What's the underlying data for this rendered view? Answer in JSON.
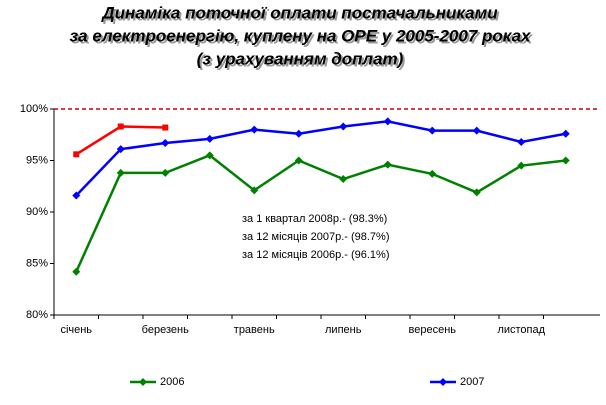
{
  "chart_data": {
    "type": "line",
    "title": [
      "Динаміка поточної оплати постачальниками",
      "за електроенергію, куплену на ОРЕ у 2005-2007 роках",
      "(з урахуванням доплат)"
    ],
    "categories": [
      "січень",
      null,
      "березень",
      null,
      "травень",
      null,
      "липень",
      null,
      "вересень",
      null,
      "листопад",
      null
    ],
    "series": [
      {
        "name": "2006",
        "color": "#008000",
        "marker": "diamond",
        "values": [
          84.2,
          93.8,
          93.8,
          95.5,
          92.1,
          95.0,
          93.2,
          94.6,
          93.7,
          91.9,
          94.5,
          95.0
        ]
      },
      {
        "name": "2007",
        "color": "#0000ff",
        "marker": "diamond",
        "values": [
          91.6,
          96.1,
          96.7,
          97.1,
          98.0,
          97.6,
          98.3,
          98.8,
          97.9,
          97.9,
          96.8,
          97.6
        ]
      },
      {
        "color": "#ff0000",
        "marker": "square",
        "values": [
          95.6,
          98.3,
          98.2,
          null,
          null,
          null,
          null,
          null,
          null,
          null,
          null,
          null
        ]
      }
    ],
    "reference_line": {
      "value": 100,
      "color": "#cc0000"
    },
    "annotations": [
      "за 1 квартал 2008р.- (98.3%)",
      "за 12 місяців 2007р.- (98.7%)",
      "за 12 місяців 2006р.- (96.1%)"
    ],
    "ylim": [
      80,
      100
    ],
    "yticks": [
      {
        "value": 80,
        "label": "80%"
      },
      {
        "value": 85,
        "label": "85%"
      },
      {
        "value": 90,
        "label": "90%"
      },
      {
        "value": 95,
        "label": "95%"
      },
      {
        "value": 100,
        "label": "100%"
      }
    ],
    "grid": false,
    "legend": "bottom"
  }
}
